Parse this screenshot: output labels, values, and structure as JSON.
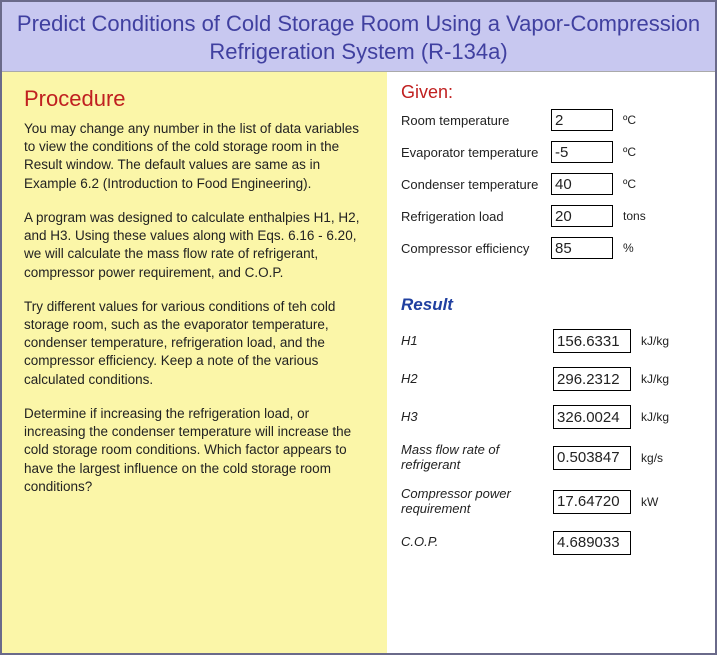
{
  "title": "Predict Conditions of Cold Storage Room Using a Vapor-Compression Refrigeration System (R-134a)",
  "procedure": {
    "heading": "Procedure",
    "paragraphs": [
      "You may change any number in the list of data variables to view the conditions of the cold storage room in the Result window. The default values are same as in Example 6.2 (Introduction to Food Engineering).",
      "A program was designed to calculate enthalpies H1, H2, and H3.  Using these values along with Eqs. 6.16 - 6.20, we will calculate the mass flow rate of refrigerant, compressor power requirement, and C.O.P.",
      "Try different values for various conditions of teh cold storage room, such as the evaporator temperature, condenser temperature, refrigeration load, and the compressor efficiency.  Keep a note of the various calculated conditions.",
      "Determine if increasing the refrigeration load, or increasing the condenser temperature will increase the cold storage room conditions. Which factor appears to have the largest influence on the cold storage room conditions?"
    ]
  },
  "given": {
    "heading": "Given:",
    "rows": [
      {
        "label": "Room temperature",
        "value": "2",
        "unit": "ºC"
      },
      {
        "label": "Evaporator temperature",
        "value": "-5",
        "unit": "ºC"
      },
      {
        "label": "Condenser temperature",
        "value": "40",
        "unit": "ºC"
      },
      {
        "label": "Refrigeration load",
        "value": "20",
        "unit": "tons"
      },
      {
        "label": "Compressor efficiency",
        "value": "85",
        "unit": "%"
      }
    ]
  },
  "result": {
    "heading": "Result",
    "rows": [
      {
        "label": "H1",
        "value": "156.6331",
        "unit": "kJ/kg"
      },
      {
        "label": "H2",
        "value": "296.2312",
        "unit": "kJ/kg"
      },
      {
        "label": "H3",
        "value": "326.0024",
        "unit": "kJ/kg"
      },
      {
        "label": "Mass flow rate of refrigerant",
        "value": "0.503847",
        "unit": "kg/s"
      },
      {
        "label": "Compressor power requirement",
        "value": "17.64720",
        "unit": "kW"
      },
      {
        "label": "C.O.P.",
        "value": "4.689033",
        "unit": ""
      }
    ]
  },
  "colors": {
    "title_bg": "#c8c8f0",
    "title_text": "#4040a0",
    "left_bg": "#fbf6a8",
    "red": "#c02020",
    "blue": "#2040a0",
    "border": "#6a6a8a"
  }
}
